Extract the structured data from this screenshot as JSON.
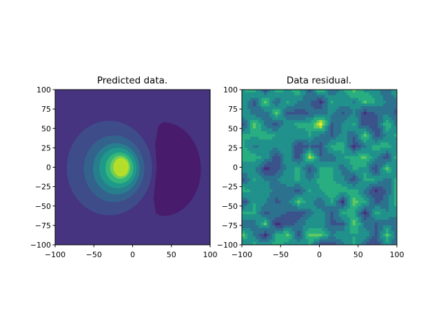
{
  "chart_data": [
    {
      "type": "contour",
      "title": "Predicted data.",
      "xlim": [
        -100,
        100
      ],
      "ylim": [
        -100,
        100
      ],
      "xticks": [
        "−100",
        "−50",
        "0",
        "50",
        "100"
      ],
      "yticks": [
        "100",
        "75",
        "50",
        "25",
        "0",
        "−25",
        "−50",
        "−75",
        "−100"
      ],
      "colormap": "viridis",
      "features": {
        "peak_center": [
          -15,
          0
        ],
        "trough_x_range": [
          27,
          88
        ],
        "trough_y_range": [
          -63,
          58
        ]
      },
      "level_colors": [
        "#481b6d",
        "#463480",
        "#3e4c8a",
        "#33638d",
        "#277f8e",
        "#1f9a8a",
        "#35b779",
        "#6ece58",
        "#b5de2b",
        "#dfe318"
      ]
    },
    {
      "type": "contour",
      "title": "Data residual.",
      "xlim": [
        -100,
        100
      ],
      "ylim": [
        -100,
        100
      ],
      "xticks": [
        "−100",
        "−50",
        "0",
        "50",
        "100"
      ],
      "yticks": [
        "100",
        "75",
        "50",
        "25",
        "0",
        "−25",
        "−50",
        "−75",
        "−100"
      ],
      "colormap": "viridis",
      "level_colors": [
        "#440154",
        "#472d7b",
        "#3b528b",
        "#2c728e",
        "#21918c",
        "#28ae80",
        "#5ec962",
        "#addc30",
        "#fde725"
      ]
    }
  ]
}
